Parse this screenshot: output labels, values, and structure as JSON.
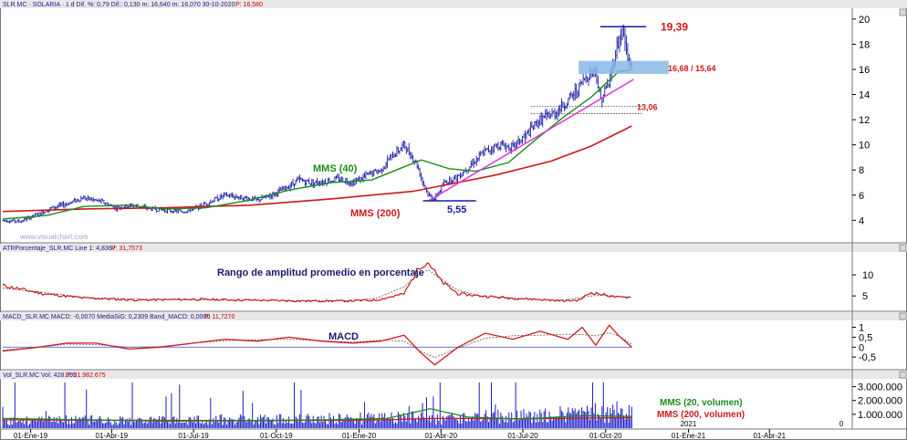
{
  "header": {
    "main": "SLR.MC · SOLARIA · 1 d Dif. %: 0,79 Dif.: 0,130 m: 16,640 m: 16,070 30-10-2020",
    "main_p": "P: 16,580",
    "atr": "ATRPorcentaje_SLR.MC Line 1: 4,8367",
    "atr_p": "P: 31,7573",
    "macd": "MACD_SLR.MC MACD: -0,0070 MediaSiG: 0,2309 Band_MACD: 0,0000",
    "macd_p": "P: 11,7270",
    "vol": "Vol_SLR.MC Vol: 428.095",
    "vol_p": "P: 21.982.675"
  },
  "watermark": "www.visualchart.com",
  "colors": {
    "price": "#1a1aa8",
    "ma40": "#1a8c1a",
    "ma200": "#cc1a1a",
    "trend": "#dd33dd",
    "band": "#8ab8e6",
    "volume": "#1a1acc"
  },
  "chart_data": [
    {
      "type": "line",
      "name": "price",
      "x_range": [
        "2018-12-01",
        "2021-06-30"
      ],
      "ylim": [
        2.5,
        20.5
      ],
      "y_ticks": [
        "4",
        "6",
        "8",
        "10",
        "12",
        "14",
        "16",
        "18",
        "20"
      ],
      "x_ticks": [
        {
          "date": "2019-01-01",
          "label": "01-Ene-19"
        },
        {
          "date": "2019-04-01",
          "label": "01-Abr-19"
        },
        {
          "date": "2019-07-01",
          "label": "01-Jul-19"
        },
        {
          "date": "2019-10-01",
          "label": "01-Oct-19"
        },
        {
          "date": "2020-01-01",
          "label": "01-Ene-20"
        },
        {
          "date": "2020-04-01",
          "label": "01-Abr-20"
        },
        {
          "date": "2020-07-01",
          "label": "01-Jul-20"
        },
        {
          "date": "2020-10-01",
          "label": "01-Oct-20"
        },
        {
          "date": "2021-01-01",
          "label": "01-Ene-21"
        },
        {
          "date": "2021-04-01",
          "label": "01-Abr-21"
        }
      ],
      "extra_x_labels": [
        {
          "date": "2021-01-01",
          "label": "2021"
        },
        {
          "date": "2021-06-20",
          "label": "0"
        }
      ],
      "series": [
        {
          "name": "SOLARIA",
          "x": [
            "2018-12-01",
            "2018-12-20",
            "2019-01-10",
            "2019-01-25",
            "2019-02-10",
            "2019-02-28",
            "2019-03-20",
            "2019-04-05",
            "2019-04-25",
            "2019-05-15",
            "2019-06-01",
            "2019-06-20",
            "2019-07-05",
            "2019-07-20",
            "2019-08-05",
            "2019-08-25",
            "2019-09-10",
            "2019-09-25",
            "2019-10-10",
            "2019-10-25",
            "2019-11-10",
            "2019-11-25",
            "2019-12-10",
            "2019-12-25",
            "2020-01-10",
            "2020-01-25",
            "2020-02-05",
            "2020-02-20",
            "2020-03-05",
            "2020-03-12",
            "2020-03-18",
            "2020-03-25",
            "2020-04-05",
            "2020-04-20",
            "2020-05-05",
            "2020-05-20",
            "2020-06-05",
            "2020-06-20",
            "2020-07-05",
            "2020-07-20",
            "2020-08-05",
            "2020-08-20",
            "2020-09-01",
            "2020-09-10",
            "2020-09-20",
            "2020-09-25",
            "2020-10-05",
            "2020-10-12",
            "2020-10-20",
            "2020-10-26",
            "2020-10-30"
          ],
          "values": [
            4.0,
            3.9,
            4.5,
            5.0,
            5.3,
            5.8,
            5.5,
            5.0,
            5.2,
            4.9,
            4.8,
            4.7,
            5.0,
            5.5,
            6.0,
            5.8,
            5.6,
            6.0,
            6.5,
            7.2,
            7.0,
            7.1,
            7.3,
            7.0,
            7.6,
            8.0,
            9.0,
            10.0,
            8.5,
            7.0,
            6.0,
            5.7,
            7.0,
            7.5,
            8.5,
            9.5,
            10.0,
            9.8,
            10.8,
            12.0,
            12.5,
            13.5,
            14.5,
            15.5,
            16.0,
            13.5,
            15.0,
            17.5,
            19.2,
            16.5,
            16.6
          ]
        },
        {
          "name": "MMS (40)",
          "x": [
            "2018-12-01",
            "2019-01-20",
            "2019-03-01",
            "2019-04-15",
            "2019-06-01",
            "2019-07-15",
            "2019-09-01",
            "2019-10-15",
            "2019-12-01",
            "2020-01-15",
            "2020-02-15",
            "2020-03-10",
            "2020-04-10",
            "2020-05-10",
            "2020-06-15",
            "2020-07-15",
            "2020-08-15",
            "2020-09-15",
            "2020-10-15",
            "2020-10-30"
          ],
          "values": [
            4.1,
            4.4,
            5.1,
            5.2,
            4.9,
            5.0,
            5.6,
            6.4,
            7.0,
            7.2,
            8.1,
            8.8,
            8.1,
            7.9,
            8.6,
            10.4,
            12.2,
            13.8,
            15.8,
            16.0
          ]
        },
        {
          "name": "MMS (200)",
          "x": [
            "2018-12-01",
            "2019-03-01",
            "2019-06-01",
            "2019-09-01",
            "2019-12-01",
            "2020-03-01",
            "2020-06-01",
            "2020-08-01",
            "2020-09-15",
            "2020-10-30"
          ],
          "values": [
            4.7,
            4.9,
            5.0,
            5.2,
            5.7,
            6.3,
            7.6,
            8.7,
            9.9,
            11.5
          ]
        }
      ],
      "annotations": [
        {
          "label": "MMS (40)",
          "color": "#1a8c1a"
        },
        {
          "label": "MMS (200)",
          "color": "#cc1a1a"
        },
        {
          "label": "19,39",
          "value": 19.39,
          "color": "#cc1a1a"
        },
        {
          "label": "16,68 / 15,64",
          "range": [
            15.64,
            16.68
          ],
          "color": "#cc1a1a"
        },
        {
          "label": "13,06",
          "value": 13.06,
          "color": "#cc1a1a"
        },
        {
          "label": "5,55",
          "value": 5.55,
          "color": "#1a1aa8"
        }
      ],
      "grid": false
    },
    {
      "type": "line",
      "name": "ATR",
      "title": "Rango de amplitud promedio en porcentaje",
      "ylim": [
        2,
        15
      ],
      "y_ticks": [
        "5",
        "10"
      ],
      "series": [
        {
          "name": "ATR%",
          "x": [
            "2018-12-01",
            "2019-01-15",
            "2019-03-01",
            "2019-05-01",
            "2019-07-01",
            "2019-09-01",
            "2019-11-01",
            "2019-12-20",
            "2020-01-20",
            "2020-02-20",
            "2020-03-08",
            "2020-03-18",
            "2020-04-01",
            "2020-04-20",
            "2020-05-15",
            "2020-06-15",
            "2020-07-15",
            "2020-08-15",
            "2020-09-01",
            "2020-09-15",
            "2020-10-01",
            "2020-10-15",
            "2020-10-30"
          ],
          "values": [
            7.5,
            5.5,
            4.5,
            4.0,
            4.2,
            4.0,
            3.8,
            3.8,
            4.0,
            5.5,
            12.0,
            13.0,
            8.5,
            5.5,
            5.0,
            4.5,
            4.2,
            3.8,
            4.0,
            5.8,
            5.2,
            4.6,
            4.8
          ]
        }
      ]
    },
    {
      "type": "line",
      "name": "MACD",
      "title": "MACD",
      "ylim": [
        -1.0,
        1.3
      ],
      "y_ticks": [
        "-0,5",
        "0",
        "0,5",
        "1"
      ],
      "series": [
        {
          "name": "MACD",
          "x": [
            "2018-12-01",
            "2019-01-10",
            "2019-02-10",
            "2019-03-15",
            "2019-04-20",
            "2019-05-25",
            "2019-07-01",
            "2019-08-05",
            "2019-09-10",
            "2019-10-15",
            "2019-11-20",
            "2019-12-25",
            "2020-01-25",
            "2020-02-20",
            "2020-03-10",
            "2020-03-25",
            "2020-04-20",
            "2020-05-20",
            "2020-06-20",
            "2020-07-20",
            "2020-08-20",
            "2020-09-05",
            "2020-09-20",
            "2020-10-05",
            "2020-10-15",
            "2020-10-30"
          ],
          "values": [
            -0.2,
            0.0,
            0.2,
            0.2,
            -0.1,
            0.0,
            0.2,
            0.4,
            0.3,
            0.5,
            0.3,
            0.2,
            0.3,
            0.6,
            -0.3,
            -0.9,
            0.0,
            0.7,
            0.4,
            0.8,
            0.4,
            1.0,
            0.1,
            1.1,
            0.6,
            -0.01
          ]
        }
      ]
    },
    {
      "type": "bar",
      "name": "Volume",
      "ylim": [
        0,
        3500000
      ],
      "y_ticks": [
        "1.000.000",
        "2.000.000",
        "3.000.000"
      ],
      "series_labels": [
        {
          "label": "MMS (20, volumen)",
          "color": "#1a8c1a"
        },
        {
          "label": "MMS (200, volumen)",
          "color": "#cc1a1a"
        }
      ]
    }
  ]
}
